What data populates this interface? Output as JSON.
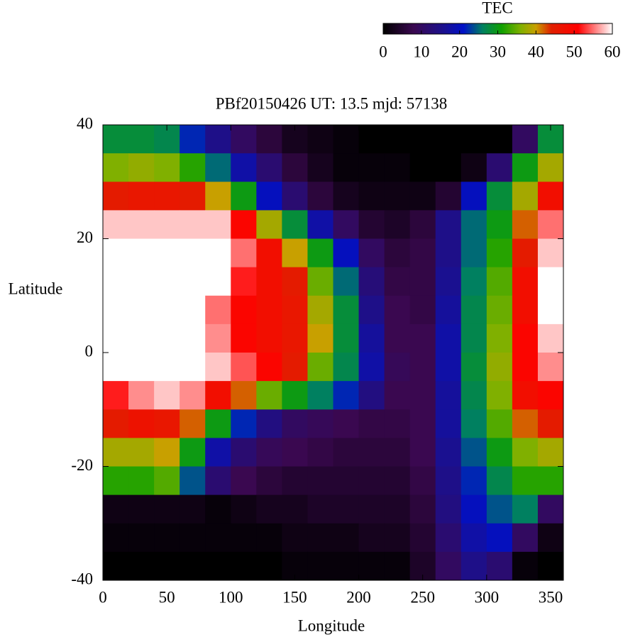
{
  "chart_data": {
    "type": "heatmap",
    "title": "PBf20150426  UT: 13.5  mjd: 57138",
    "x_label": "Longitude",
    "y_label": "Latitude",
    "colorbar_title": "TEC",
    "x": [
      10,
      30,
      50,
      70,
      90,
      110,
      130,
      150,
      170,
      190,
      210,
      230,
      250,
      270,
      290,
      310,
      330,
      350
    ],
    "y": [
      37.5,
      32.5,
      27.5,
      22.5,
      17.5,
      12.5,
      7.5,
      2.5,
      -2.5,
      -7.5,
      -12.5,
      -17.5,
      -22.5,
      -27.5,
      -32.5,
      -37.5
    ],
    "z": [
      [
        28,
        28,
        27,
        22,
        15,
        10,
        6,
        3,
        2,
        1,
        0,
        0,
        0,
        0,
        0,
        0,
        10,
        28
      ],
      [
        36,
        37,
        36,
        32,
        25,
        18,
        12,
        6,
        3,
        1,
        1,
        1,
        0,
        0,
        2,
        12,
        30,
        38
      ],
      [
        45,
        46,
        46,
        45,
        40,
        30,
        20,
        12,
        6,
        3,
        2,
        2,
        2,
        5,
        20,
        28,
        38,
        48
      ],
      [
        58,
        58,
        58,
        58,
        58,
        50,
        38,
        28,
        18,
        10,
        5,
        4,
        6,
        15,
        25,
        30,
        42,
        55
      ],
      [
        60,
        60,
        60,
        60,
        60,
        55,
        48,
        40,
        30,
        20,
        10,
        6,
        7,
        15,
        25,
        32,
        45,
        58
      ],
      [
        60,
        60,
        60,
        60,
        60,
        52,
        48,
        45,
        35,
        25,
        13,
        7,
        7,
        16,
        26,
        34,
        48,
        60
      ],
      [
        60,
        60,
        60,
        60,
        55,
        50,
        48,
        46,
        38,
        28,
        15,
        8,
        7,
        17,
        27,
        35,
        48,
        60
      ],
      [
        60,
        60,
        60,
        60,
        56,
        50,
        48,
        46,
        40,
        28,
        17,
        8,
        8,
        18,
        27,
        36,
        50,
        58
      ],
      [
        60,
        60,
        60,
        60,
        58,
        54,
        50,
        45,
        35,
        27,
        18,
        9,
        8,
        18,
        28,
        37,
        50,
        56
      ],
      [
        52,
        56,
        58,
        56,
        48,
        42,
        35,
        30,
        26,
        22,
        14,
        8,
        8,
        17,
        27,
        36,
        48,
        50
      ],
      [
        45,
        47,
        46,
        42,
        30,
        22,
        14,
        10,
        9,
        8,
        7,
        7,
        8,
        17,
        26,
        34,
        42,
        45
      ],
      [
        38,
        38,
        40,
        30,
        18,
        12,
        9,
        8,
        7,
        6,
        6,
        6,
        8,
        16,
        24,
        30,
        36,
        38
      ],
      [
        32,
        32,
        34,
        24,
        12,
        8,
        6,
        5,
        5,
        5,
        5,
        5,
        7,
        15,
        22,
        27,
        32,
        32
      ],
      [
        2,
        2,
        2,
        2,
        1,
        2,
        3,
        3,
        4,
        4,
        4,
        4,
        6,
        14,
        20,
        24,
        26,
        10
      ],
      [
        1,
        1,
        1,
        1,
        1,
        1,
        1,
        2,
        2,
        2,
        3,
        3,
        5,
        12,
        18,
        20,
        10,
        2
      ],
      [
        0,
        0,
        0,
        0,
        0,
        0,
        0,
        1,
        1,
        1,
        1,
        1,
        4,
        10,
        15,
        12,
        1,
        0
      ]
    ],
    "xlim": [
      0,
      360
    ],
    "xticks": [
      0,
      50,
      100,
      150,
      200,
      250,
      300,
      350
    ],
    "ylim": [
      -40,
      40
    ],
    "yticks": [
      -40,
      -20,
      0,
      20,
      40
    ],
    "zlim": [
      0,
      60
    ],
    "zticks": [
      0,
      10,
      20,
      30,
      40,
      50,
      60
    ],
    "colormap": [
      {
        "value": 0,
        "color": "#000000"
      },
      {
        "value": 8,
        "color": "#3a0850"
      },
      {
        "value": 16,
        "color": "#1a1090"
      },
      {
        "value": 21,
        "color": "#0010c8"
      },
      {
        "value": 26,
        "color": "#008060"
      },
      {
        "value": 31,
        "color": "#10a000"
      },
      {
        "value": 36,
        "color": "#80b000"
      },
      {
        "value": 40,
        "color": "#c8a000"
      },
      {
        "value": 44,
        "color": "#e02000"
      },
      {
        "value": 51,
        "color": "#ff0000"
      },
      {
        "value": 55,
        "color": "#ff7070"
      },
      {
        "value": 60,
        "color": "#ffffff"
      }
    ]
  }
}
